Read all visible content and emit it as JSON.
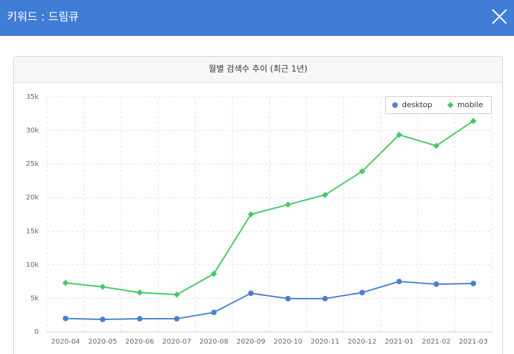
{
  "header": {
    "title": "키워드 : 드림큐"
  },
  "chart_data": {
    "type": "line",
    "title": "월별 검색수 추이 (최근 1년)",
    "categories": [
      "2020-04",
      "2020-05",
      "2020-06",
      "2020-07",
      "2020-08",
      "2020-09",
      "2020-10",
      "2020-11",
      "2020-12",
      "2021-01",
      "2021-02",
      "2021-03"
    ],
    "series": [
      {
        "name": "desktop",
        "color": "#4a7fd0",
        "marker": "circle",
        "values": [
          2000,
          1850,
          1950,
          1950,
          2900,
          5750,
          4950,
          4950,
          5850,
          7500,
          7100,
          7200
        ]
      },
      {
        "name": "mobile",
        "color": "#45c865",
        "marker": "diamond",
        "values": [
          7300,
          6700,
          5850,
          5550,
          8650,
          17500,
          18950,
          20400,
          23900,
          29350,
          27700,
          31400
        ]
      }
    ],
    "ylim": [
      0,
      35000
    ],
    "yticks": [
      0,
      {
        "value": 5000,
        "label": "5k"
      },
      {
        "value": 10000,
        "label": "10k"
      },
      {
        "value": 15000,
        "label": "15k"
      },
      {
        "value": 20000,
        "label": "20k"
      },
      {
        "value": 25000,
        "label": "25k"
      },
      {
        "value": 30000,
        "label": "30k"
      },
      {
        "value": 35000,
        "label": "35k"
      }
    ],
    "grid": true,
    "legend": "top-right"
  }
}
